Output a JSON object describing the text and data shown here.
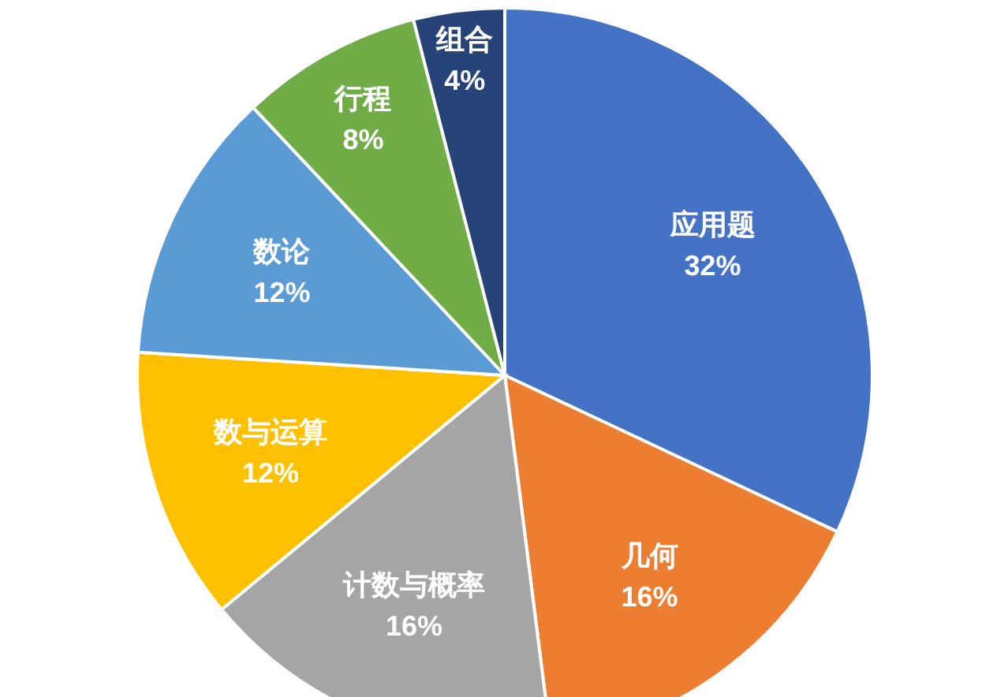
{
  "chart_data": {
    "type": "pie",
    "categories": [
      "应用题",
      "几何",
      "计数与概率",
      "数与运算",
      "数论",
      "行程",
      "组合"
    ],
    "values": [
      32,
      16,
      16,
      12,
      12,
      8,
      4
    ],
    "colors": [
      "#4472c4",
      "#ed7d31",
      "#a5a5a5",
      "#ffc000",
      "#5b9bd5",
      "#70ad47",
      "#264478"
    ],
    "value_labels": [
      "32%",
      "16%",
      "16%",
      "12%",
      "12%",
      "8%",
      "4%"
    ]
  }
}
